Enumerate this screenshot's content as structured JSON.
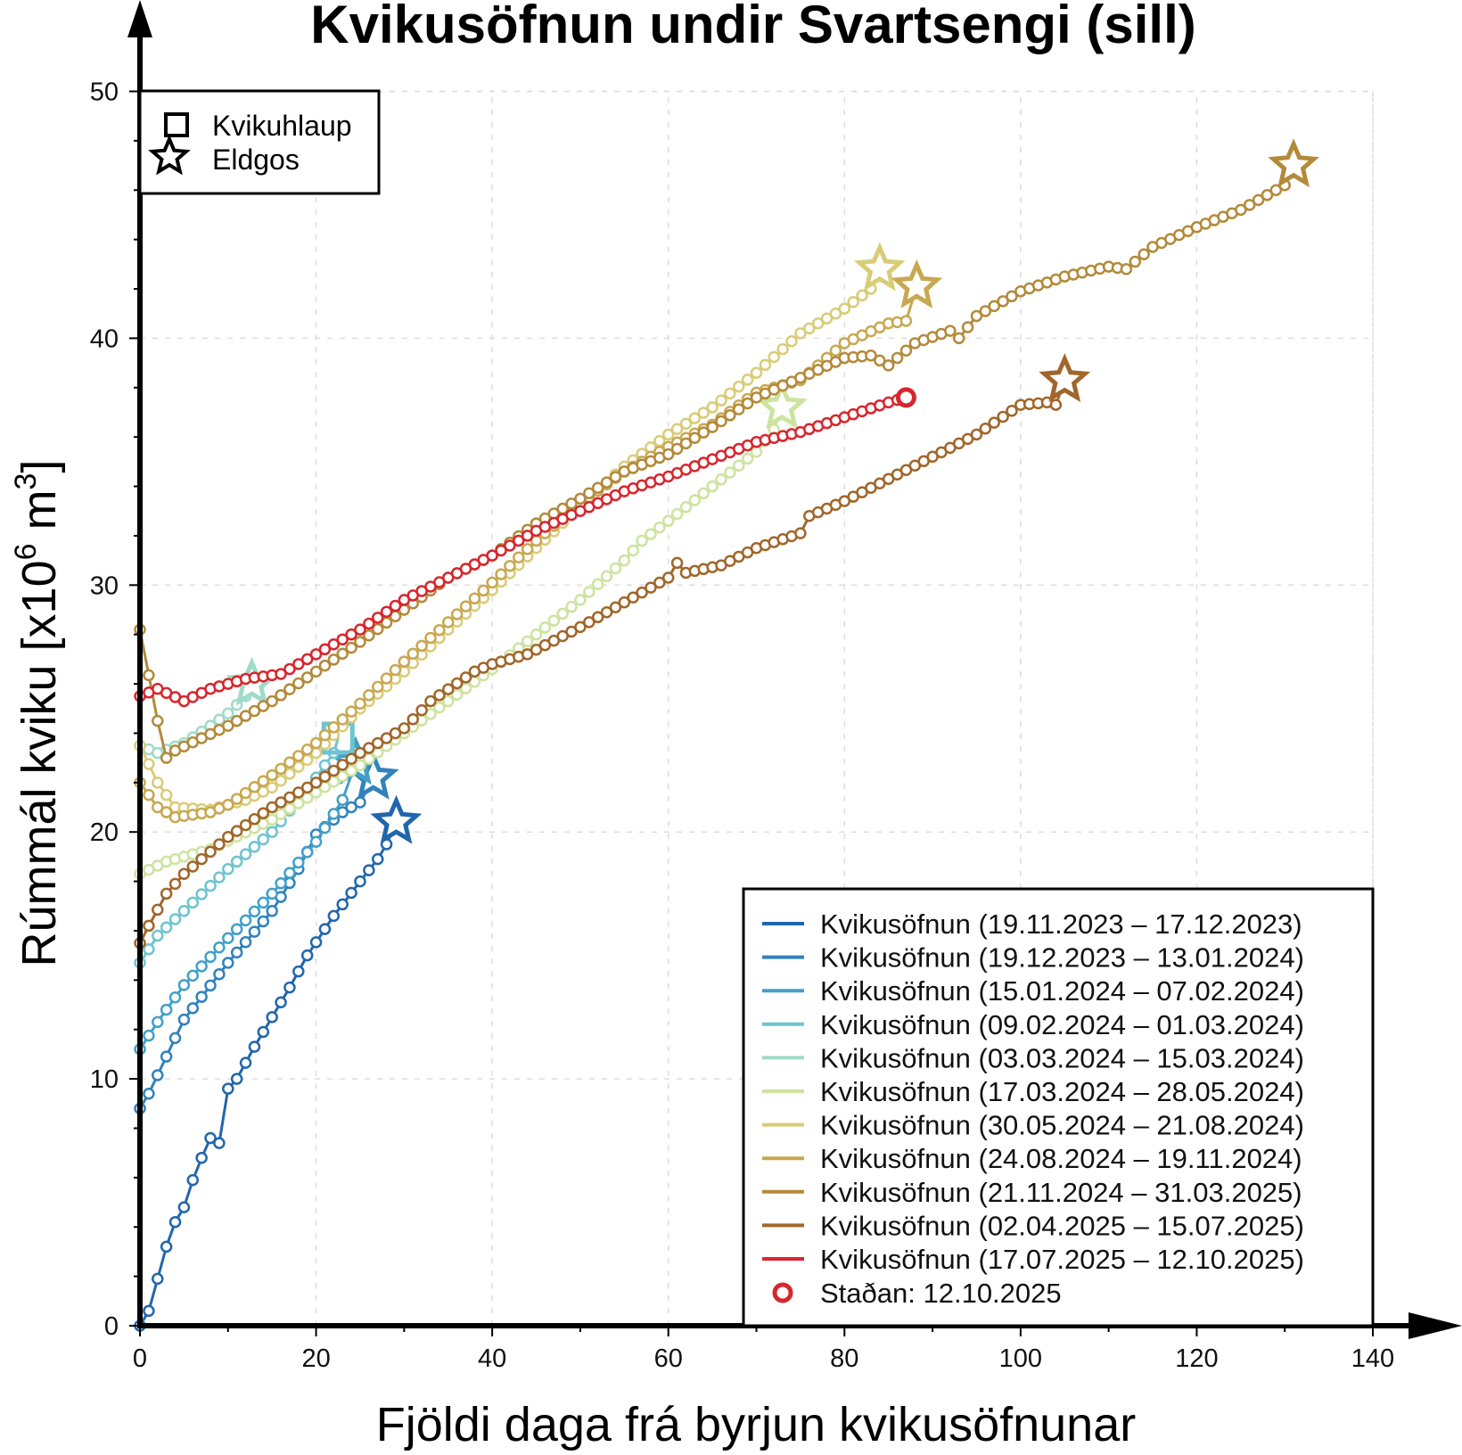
{
  "chart_data": {
    "type": "line",
    "title": "Kvikusöfnun undir Svartsengi (sill)",
    "xlabel": "Fjöldi daga frá byrjun kvikusöfnunar",
    "ylabel_main": "Rúmmál kviku [x10",
    "ylabel_exp": "6",
    "ylabel_unit": " m",
    "ylabel_unit_exp": "3",
    "ylabel_close": "]",
    "xlim": [
      0,
      140
    ],
    "ylim": [
      0,
      50
    ],
    "xticks": [
      "0",
      "20",
      "40",
      "60",
      "80",
      "100",
      "120",
      "140"
    ],
    "yticks": [
      "0",
      "10",
      "20",
      "30",
      "40",
      "50"
    ],
    "grid": true,
    "symbol_legend": {
      "placement": "top-left",
      "items": [
        {
          "label": "Kvikuhlaup",
          "symbol": "square"
        },
        {
          "label": "Eldgos",
          "symbol": "star"
        }
      ]
    },
    "legend_placement": "bottom-right",
    "current_label": "Staðan: 12.10.2025",
    "series": [
      {
        "name": "Kvikusöfnun (19.11.2023 – 17.12.2023)",
        "color": "#2166ac",
        "end": "star",
        "end_point": [
          29.1,
          20.4
        ],
        "points": [
          [
            0,
            0
          ],
          [
            1,
            0.6
          ],
          [
            2,
            1.9
          ],
          [
            3,
            3.2
          ],
          [
            4,
            4.2
          ],
          [
            5,
            4.8
          ],
          [
            6,
            5.9
          ],
          [
            7,
            6.8
          ],
          [
            8,
            7.6
          ],
          [
            9,
            7.4
          ],
          [
            10,
            9.6
          ],
          [
            11,
            10
          ],
          [
            13,
            11.3
          ],
          [
            15,
            12.5
          ],
          [
            17,
            13.7
          ],
          [
            19,
            15
          ],
          [
            22,
            16.6
          ],
          [
            25,
            18
          ],
          [
            27,
            18.9
          ],
          [
            28,
            19.5
          ]
        ]
      },
      {
        "name": "Kvikusöfnun (19.12.2023 – 13.01.2024)",
        "color": "#3182bd",
        "end": "star",
        "end_point": [
          26.5,
          22.2
        ],
        "points": [
          [
            0,
            8.8
          ],
          [
            1,
            9.4
          ],
          [
            3,
            10.9
          ],
          [
            5,
            12.4
          ],
          [
            10,
            14.7
          ],
          [
            15,
            16.8
          ],
          [
            18,
            18.5
          ],
          [
            20,
            19.9
          ],
          [
            23,
            20.8
          ],
          [
            25,
            21.2
          ]
        ]
      },
      {
        "name": "Kvikusöfnun (15.01.2024 – 07.02.2024)",
        "color": "#42a0c8",
        "end": "star",
        "end_point": [
          24.5,
          22.8
        ],
        "points": [
          [
            0,
            11.2
          ],
          [
            2,
            12.3
          ],
          [
            5,
            13.8
          ],
          [
            10,
            15.7
          ],
          [
            15,
            17.5
          ],
          [
            20,
            19.6
          ],
          [
            23,
            21.3
          ]
        ]
      },
      {
        "name": "Kvikusöfnun (09.02.2024 – 01.03.2024)",
        "color": "#6ec4d0",
        "end": "square",
        "end_point": [
          22.5,
          23.8
        ],
        "points": [
          [
            0,
            14.7
          ],
          [
            2,
            15.8
          ],
          [
            5,
            16.8
          ],
          [
            10,
            18.5
          ],
          [
            15,
            20
          ],
          [
            18,
            21.3
          ],
          [
            20,
            22.2
          ],
          [
            22,
            23.2
          ]
        ]
      },
      {
        "name": "Kvikusöfnun (03.03.2024 – 15.03.2024)",
        "color": "#a0dac8",
        "end": "star",
        "end_point": [
          12.7,
          26.0
        ],
        "points": [
          [
            0,
            23.5
          ],
          [
            2,
            23.2
          ],
          [
            5,
            23.6
          ],
          [
            8,
            24.3
          ],
          [
            10,
            24.8
          ],
          [
            12,
            25.5
          ]
        ]
      },
      {
        "name": "Kvikusöfnun (17.03.2024 – 28.05.2024)",
        "color": "#cde3a0",
        "end": "star",
        "end_point": [
          72.9,
          37.2
        ],
        "points": [
          [
            0,
            18.3
          ],
          [
            3,
            18.8
          ],
          [
            8,
            19.3
          ],
          [
            15,
            20.5
          ],
          [
            20,
            21.6
          ],
          [
            25,
            22.7
          ],
          [
            30,
            24
          ],
          [
            35,
            25.3
          ],
          [
            40,
            26.6
          ],
          [
            45,
            28
          ],
          [
            50,
            29.4
          ],
          [
            55,
            31
          ],
          [
            57,
            31.8
          ],
          [
            60,
            32.6
          ],
          [
            65,
            34
          ],
          [
            70,
            35.4
          ],
          [
            72,
            36.3
          ]
        ]
      },
      {
        "name": "Kvikusöfnun (30.05.2024 – 21.08.2024)",
        "color": "#d9cc78",
        "end": "star",
        "end_point": [
          84,
          42.8
        ],
        "points": [
          [
            0,
            23.5
          ],
          [
            2,
            22
          ],
          [
            4,
            21
          ],
          [
            8,
            20.9
          ],
          [
            12,
            21.3
          ],
          [
            15,
            21.8
          ],
          [
            20,
            23.2
          ],
          [
            25,
            25
          ],
          [
            30,
            26.5
          ],
          [
            35,
            28.2
          ],
          [
            40,
            29.8
          ],
          [
            45,
            31.5
          ],
          [
            50,
            33.2
          ],
          [
            55,
            34.8
          ],
          [
            60,
            36.1
          ],
          [
            65,
            37.2
          ],
          [
            70,
            38.6
          ],
          [
            75,
            40.2
          ],
          [
            80,
            41.2
          ],
          [
            83,
            42
          ]
        ]
      },
      {
        "name": "Kvikusöfnun (24.08.2024 – 19.11.2024)",
        "color": "#c8a850",
        "end": "star",
        "end_point": [
          88.2,
          42.1
        ],
        "points": [
          [
            0,
            22
          ],
          [
            2,
            21
          ],
          [
            4,
            20.6
          ],
          [
            8,
            20.8
          ],
          [
            10,
            21.1
          ],
          [
            15,
            22.3
          ],
          [
            20,
            23.6
          ],
          [
            25,
            25.2
          ],
          [
            30,
            26.9
          ],
          [
            35,
            28.5
          ],
          [
            40,
            30.1
          ],
          [
            45,
            31.8
          ],
          [
            50,
            33.3
          ],
          [
            55,
            34.6
          ],
          [
            60,
            35.6
          ],
          [
            65,
            36.5
          ],
          [
            70,
            37.8
          ],
          [
            75,
            38.3
          ],
          [
            80,
            39.8
          ],
          [
            85,
            40.6
          ],
          [
            87,
            40.7
          ]
        ]
      },
      {
        "name": "Kvikusöfnun (21.11.2024 – 31.03.2025)",
        "color": "#b38a3a",
        "end": "star",
        "end_point": [
          131,
          47.0
        ],
        "points": [
          [
            0,
            28.2
          ],
          [
            2,
            24.5
          ],
          [
            3,
            23
          ],
          [
            4,
            23.3
          ],
          [
            10,
            24.3
          ],
          [
            15,
            25.3
          ],
          [
            20,
            26.5
          ],
          [
            25,
            27.7
          ],
          [
            30,
            29
          ],
          [
            35,
            30.3
          ],
          [
            40,
            31.2
          ],
          [
            45,
            32.5
          ],
          [
            50,
            33.5
          ],
          [
            55,
            34.6
          ],
          [
            60,
            35.3
          ],
          [
            65,
            36.4
          ],
          [
            70,
            37.6
          ],
          [
            75,
            38.4
          ],
          [
            80,
            39.2
          ],
          [
            83,
            39.3
          ],
          [
            85,
            38.9
          ],
          [
            88,
            39.8
          ],
          [
            92,
            40.3
          ],
          [
            93,
            40
          ],
          [
            95,
            40.9
          ],
          [
            100,
            41.9
          ],
          [
            105,
            42.5
          ],
          [
            110,
            42.9
          ],
          [
            112,
            42.8
          ],
          [
            115,
            43.7
          ],
          [
            120,
            44.5
          ],
          [
            125,
            45.2
          ],
          [
            128,
            45.8
          ],
          [
            130,
            46.2
          ]
        ]
      },
      {
        "name": "Kvikusöfnun (02.04.2025 – 15.07.2025)",
        "color": "#a0662a",
        "end": "star",
        "end_point": [
          105,
          38.3
        ],
        "points": [
          [
            0,
            15.5
          ],
          [
            1,
            16.2
          ],
          [
            3,
            17.5
          ],
          [
            5,
            18.3
          ],
          [
            10,
            19.8
          ],
          [
            15,
            21
          ],
          [
            20,
            22
          ],
          [
            25,
            23.2
          ],
          [
            30,
            24.2
          ],
          [
            33,
            25.3
          ],
          [
            38,
            26.5
          ],
          [
            40,
            26.8
          ],
          [
            44,
            27.2
          ],
          [
            50,
            28.3
          ],
          [
            55,
            29.3
          ],
          [
            60,
            30.3
          ],
          [
            61,
            30.9
          ],
          [
            62,
            30.5
          ],
          [
            66,
            30.8
          ],
          [
            70,
            31.5
          ],
          [
            75,
            32.1
          ],
          [
            76,
            32.8
          ],
          [
            80,
            33.4
          ],
          [
            85,
            34.3
          ],
          [
            90,
            35.2
          ],
          [
            95,
            36.1
          ],
          [
            100,
            37.3
          ],
          [
            103,
            37.4
          ],
          [
            104,
            37.3
          ]
        ]
      },
      {
        "name": "Kvikusöfnun (17.07.2025 – 12.10.2025)",
        "color": "#d7262e",
        "end": "circle",
        "end_point": [
          87,
          37.6
        ],
        "points": [
          [
            0,
            25.5
          ],
          [
            2,
            25.8
          ],
          [
            5,
            25.3
          ],
          [
            8,
            25.8
          ],
          [
            12,
            26.2
          ],
          [
            16,
            26.4
          ],
          [
            20,
            27.2
          ],
          [
            25,
            28.2
          ],
          [
            30,
            29.4
          ],
          [
            35,
            30.3
          ],
          [
            40,
            31.2
          ],
          [
            45,
            32.2
          ],
          [
            50,
            33
          ],
          [
            55,
            33.8
          ],
          [
            60,
            34.4
          ],
          [
            65,
            35.1
          ],
          [
            70,
            35.8
          ],
          [
            75,
            36.2
          ],
          [
            80,
            36.8
          ],
          [
            85,
            37.4
          ],
          [
            86,
            37.5
          ]
        ]
      }
    ]
  }
}
